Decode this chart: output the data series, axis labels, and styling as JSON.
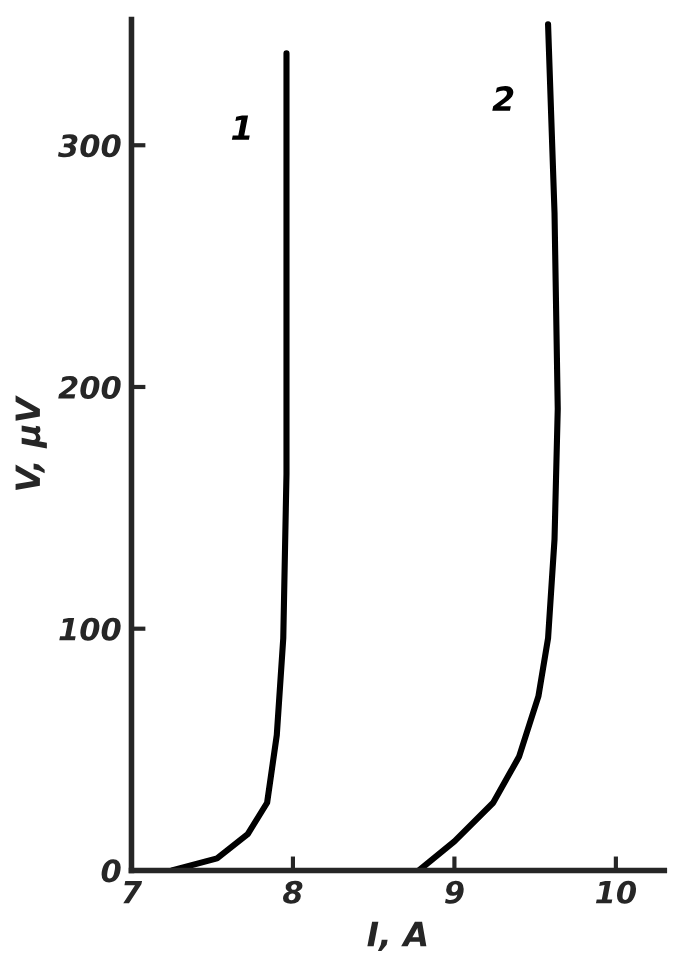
{
  "chart_data": {
    "type": "line",
    "xlabel": "I, A",
    "ylabel": "V, μV",
    "xlim": [
      7,
      10.3
    ],
    "ylim": [
      0,
      352
    ],
    "xticks": [
      7,
      8,
      9,
      10
    ],
    "yticks": [
      0,
      100,
      200,
      300
    ],
    "grid": false,
    "legend": false,
    "marker": "none",
    "line_style": "solid",
    "series": [
      {
        "name": "1",
        "color": "#000000",
        "x": [
          7.25,
          7.53,
          7.72,
          7.84,
          7.9,
          7.94,
          7.96,
          7.96,
          7.96
        ],
        "values": [
          0,
          5,
          15,
          28,
          56,
          96,
          164,
          245,
          338
        ]
      },
      {
        "name": "2",
        "color": "#000000",
        "x": [
          8.78,
          9.0,
          9.24,
          9.4,
          9.52,
          9.58,
          9.62,
          9.64,
          9.62,
          9.58
        ],
        "values": [
          0,
          12,
          28,
          47,
          72,
          96,
          137,
          191,
          272,
          350
        ]
      }
    ]
  }
}
